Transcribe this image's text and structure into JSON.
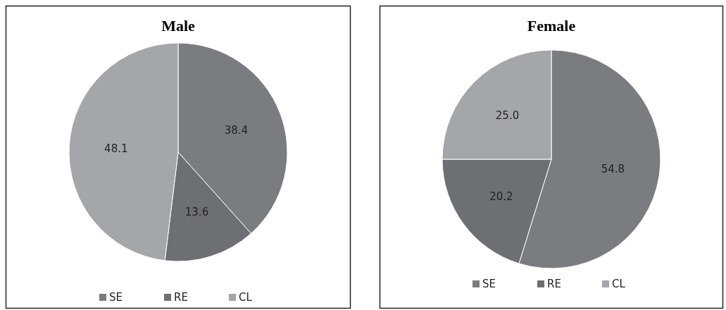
{
  "chart_data": [
    {
      "type": "pie",
      "title": "Male",
      "categories": [
        "SE",
        "RE",
        "CL"
      ],
      "values": [
        38.4,
        13.6,
        48.1
      ],
      "colors": [
        "#7b7c80",
        "#6e6f73",
        "#a5a6aa"
      ],
      "value_labels": [
        "38.4",
        "13.6",
        "48.1"
      ],
      "legend": "bottom"
    },
    {
      "type": "pie",
      "title": "Female",
      "categories": [
        "SE",
        "RE",
        "CL"
      ],
      "values": [
        54.8,
        20.2,
        25.0
      ],
      "colors": [
        "#7b7c80",
        "#6e6f73",
        "#a5a6aa"
      ],
      "value_labels": [
        "54.8",
        "20.2",
        "25.0"
      ],
      "legend": "bottom"
    }
  ]
}
